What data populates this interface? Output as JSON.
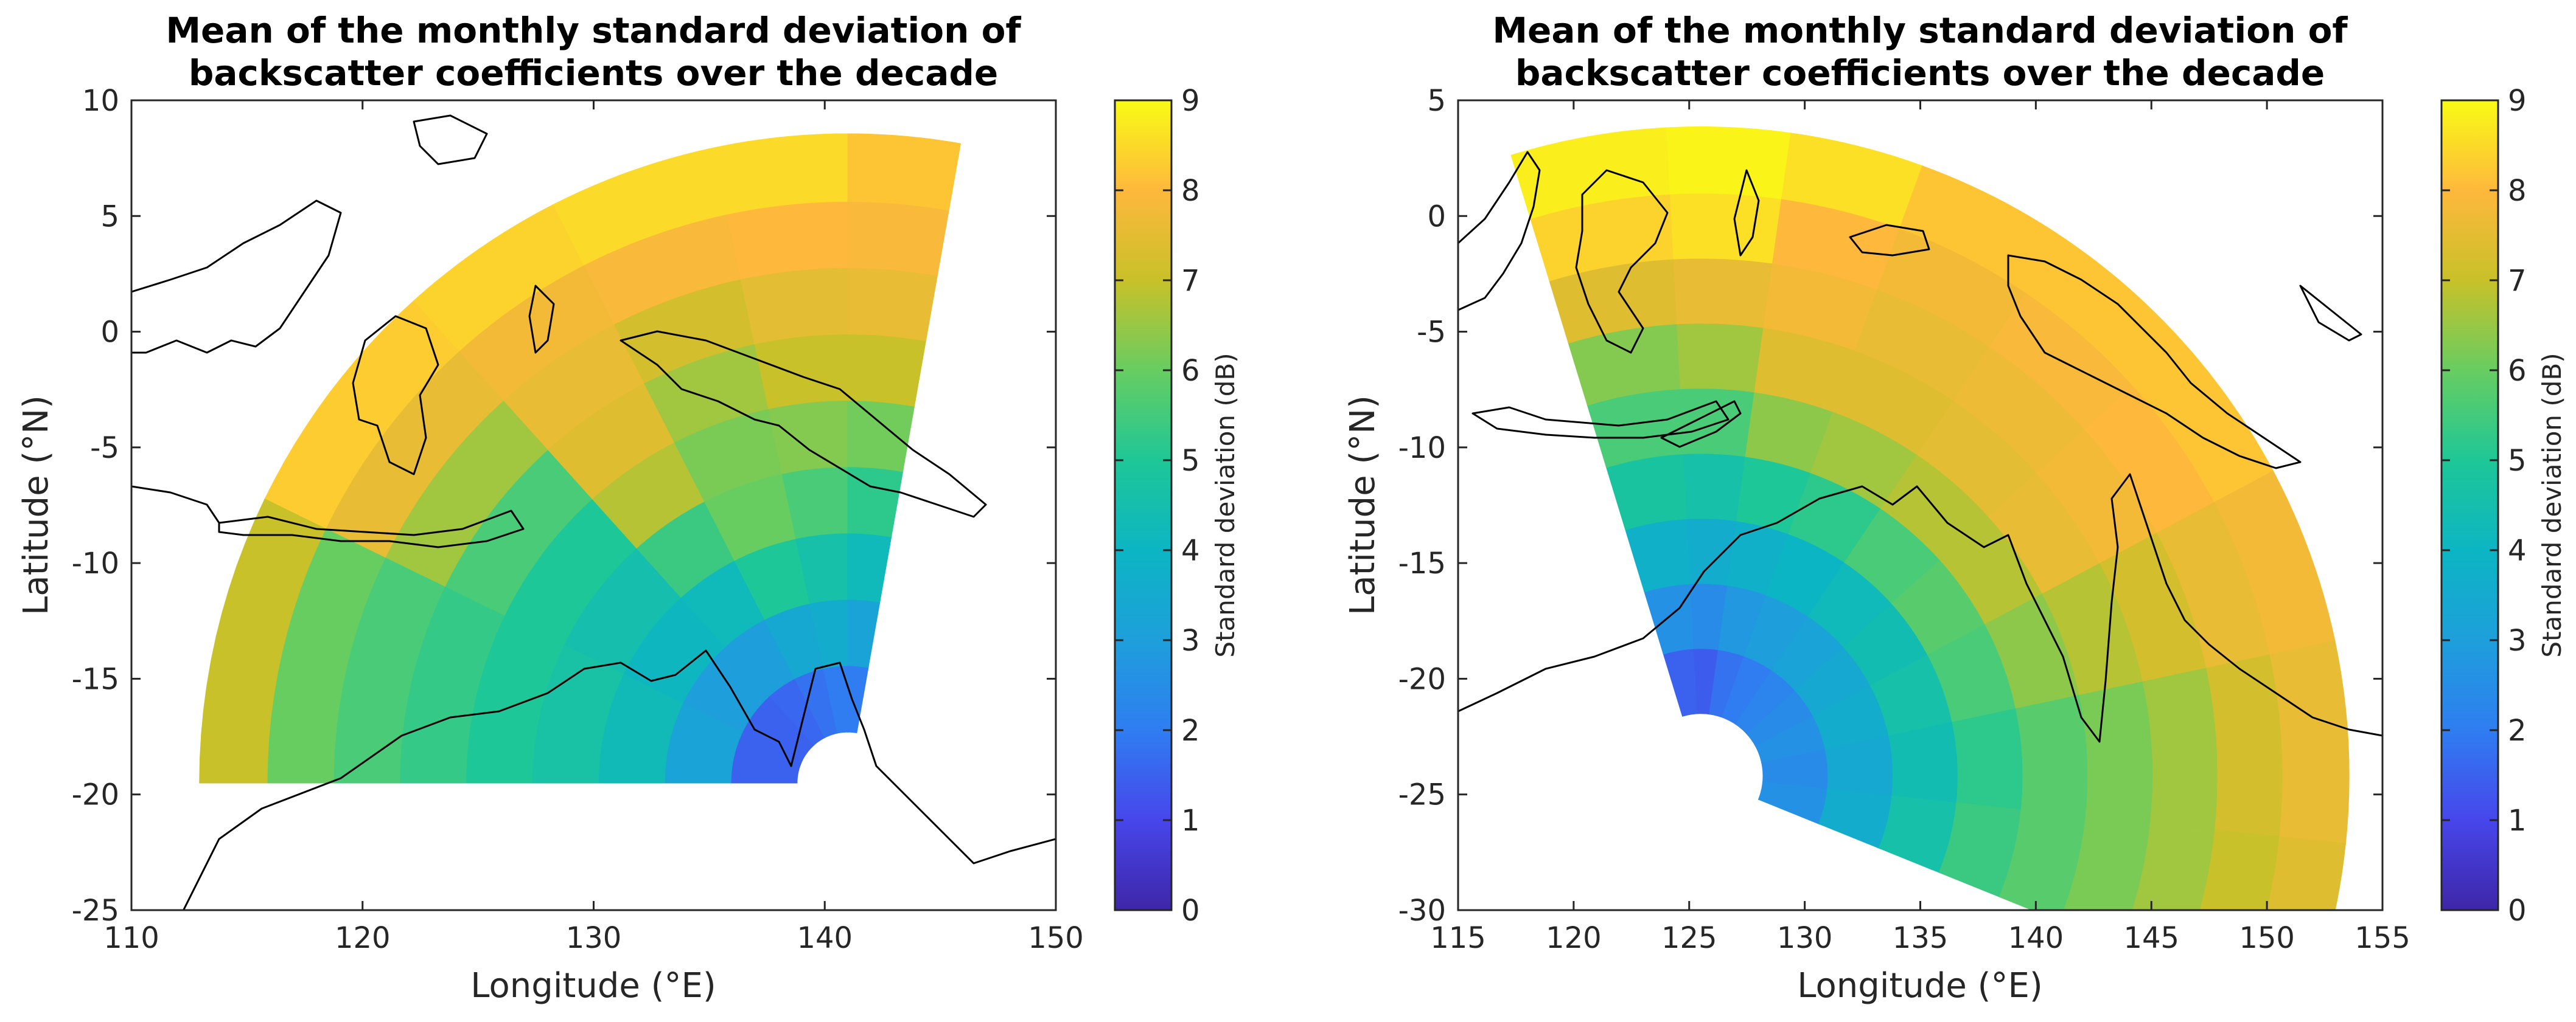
{
  "chart_data": [
    {
      "type": "heatmap",
      "subtype": "radar-sector-map",
      "title_lines": [
        "Mean of the monthly standard deviation of",
        "backscatter coefficients over the decade"
      ],
      "xlabel": "Longitude (°E)",
      "ylabel": "Latitude (°N)",
      "xlim": [
        110,
        150
      ],
      "ylim": [
        -25,
        10
      ],
      "xticks": [
        110,
        120,
        130,
        140,
        150
      ],
      "yticks": [
        -25,
        -20,
        -15,
        -10,
        -5,
        0,
        5,
        10
      ],
      "sector": {
        "center_lon": 141,
        "center_lat": -19.5,
        "inner_radius_deg": 2.2,
        "outer_radius_deg": 28,
        "start_bearing_deg": 270,
        "end_bearing_deg": 370
      },
      "colorbar": {
        "label": "Standard deviation (dB)",
        "min": 0,
        "max": 9,
        "ticks": [
          0,
          1,
          2,
          3,
          4,
          5,
          6,
          7,
          8,
          9
        ]
      },
      "sectors": [
        {
          "from_bearing": 270,
          "to_bearing": 296,
          "values_inner_to_outer": [
            1.5,
            3.2,
            4.3,
            4.7,
            5.0,
            5.3,
            5.6,
            6.0,
            7.0
          ]
        },
        {
          "from_bearing": 296,
          "to_bearing": 318,
          "values_inner_to_outer": [
            1.5,
            3.0,
            4.1,
            4.5,
            5.0,
            5.6,
            6.6,
            7.6,
            8.3
          ]
        },
        {
          "from_bearing": 318,
          "to_bearing": 333,
          "values_inner_to_outer": [
            1.6,
            3.0,
            4.2,
            5.4,
            6.8,
            7.4,
            7.6,
            7.8,
            8.4
          ]
        },
        {
          "from_bearing": 333,
          "to_bearing": 348,
          "values_inner_to_outer": [
            1.8,
            3.4,
            5.0,
            6.0,
            6.2,
            6.6,
            7.2,
            7.9,
            8.5
          ]
        },
        {
          "from_bearing": 348,
          "to_bearing": 360,
          "values_inner_to_outer": [
            2.0,
            3.6,
            4.6,
            5.6,
            6.3,
            7.0,
            7.5,
            8.0,
            8.5
          ]
        },
        {
          "from_bearing": 360,
          "to_bearing": 370,
          "values_inner_to_outer": [
            2.0,
            3.2,
            4.2,
            5.2,
            6.1,
            7.0,
            7.6,
            7.9,
            8.2
          ]
        }
      ]
    },
    {
      "type": "heatmap",
      "subtype": "radar-sector-map",
      "title_lines": [
        "Mean of the monthly standard deviation of",
        "backscatter coefficients over the decade"
      ],
      "xlabel": "Longitude (°E)",
      "ylabel": "Latitude (°N)",
      "xlim": [
        115,
        155
      ],
      "ylim": [
        -30,
        5
      ],
      "xticks": [
        115,
        120,
        125,
        130,
        135,
        140,
        145,
        150,
        155
      ],
      "yticks": [
        -30,
        -25,
        -20,
        -15,
        -10,
        -5,
        0,
        5
      ],
      "sector": {
        "center_lon": 125.5,
        "center_lat": -24.2,
        "inner_radius_deg": 2.7,
        "outer_radius_deg": 28,
        "start_bearing_deg": -17,
        "end_bearing_deg": 112
      },
      "colorbar": {
        "label": "Standard deviation (dB)",
        "min": 0,
        "max": 9,
        "ticks": [
          0,
          1,
          2,
          3,
          4,
          5,
          6,
          7,
          8,
          9
        ]
      },
      "sectors": [
        {
          "from_bearing": -17,
          "to_bearing": -3,
          "values_inner_to_outer": [
            1.5,
            2.6,
            3.8,
            4.8,
            5.6,
            6.3,
            7.4,
            8.4,
            8.8
          ]
        },
        {
          "from_bearing": -3,
          "to_bearing": 8,
          "values_inner_to_outer": [
            1.4,
            2.4,
            3.6,
            4.6,
            5.6,
            6.6,
            7.6,
            8.6,
            8.9
          ]
        },
        {
          "from_bearing": 8,
          "to_bearing": 20,
          "values_inner_to_outer": [
            1.8,
            2.8,
            3.8,
            5.0,
            6.4,
            7.4,
            7.8,
            8.0,
            8.6
          ]
        },
        {
          "from_bearing": 20,
          "to_bearing": 34,
          "values_inner_to_outer": [
            2.0,
            3.0,
            4.0,
            5.2,
            6.6,
            7.4,
            7.6,
            7.8,
            8.2
          ]
        },
        {
          "from_bearing": 34,
          "to_bearing": 48,
          "values_inner_to_outer": [
            2.2,
            3.2,
            4.2,
            5.6,
            6.8,
            7.5,
            7.7,
            7.9,
            8.2
          ]
        },
        {
          "from_bearing": 48,
          "to_bearing": 62,
          "values_inner_to_outer": [
            2.4,
            3.4,
            4.4,
            5.8,
            6.8,
            7.6,
            7.8,
            8.0,
            8.2
          ]
        },
        {
          "from_bearing": 62,
          "to_bearing": 78,
          "values_inner_to_outer": [
            2.6,
            3.6,
            4.6,
            5.6,
            6.4,
            6.8,
            7.2,
            7.6,
            7.8
          ]
        },
        {
          "from_bearing": 78,
          "to_bearing": 96,
          "values_inner_to_outer": [
            2.4,
            3.4,
            4.4,
            5.2,
            5.8,
            6.2,
            6.6,
            7.2,
            7.6
          ]
        },
        {
          "from_bearing": 96,
          "to_bearing": 112,
          "values_inner_to_outer": [
            2.6,
            3.6,
            4.6,
            5.4,
            5.8,
            6.2,
            6.6,
            7.0,
            7.4
          ]
        }
      ]
    }
  ]
}
